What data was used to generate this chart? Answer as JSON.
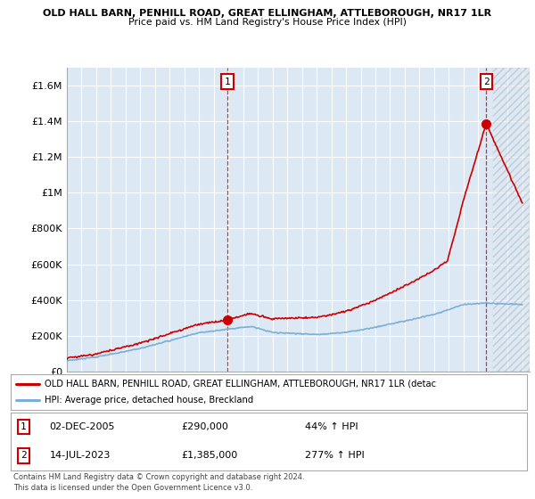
{
  "title1": "OLD HALL BARN, PENHILL ROAD, GREAT ELLINGHAM, ATTLEBOROUGH, NR17 1LR",
  "title2": "Price paid vs. HM Land Registry's House Price Index (HPI)",
  "xlim_start": 1995.0,
  "xlim_end": 2026.5,
  "ylim": [
    0,
    1700000
  ],
  "yticks": [
    0,
    200000,
    400000,
    600000,
    800000,
    1000000,
    1200000,
    1400000,
    1600000
  ],
  "ytick_labels": [
    "£0",
    "£200K",
    "£400K",
    "£600K",
    "£800K",
    "£1M",
    "£1.2M",
    "£1.4M",
    "£1.6M"
  ],
  "hpi_color": "#7bafd4",
  "price_color": "#cc0000",
  "sale1_x": 2005.92,
  "sale1_y": 290000,
  "sale2_x": 2023.54,
  "sale2_y": 1385000,
  "legend_price_label": "OLD HALL BARN, PENHILL ROAD, GREAT ELLINGHAM, ATTLEBOROUGH, NR17 1LR (detac",
  "legend_hpi_label": "HPI: Average price, detached house, Breckland",
  "table_row1": [
    "1",
    "02-DEC-2005",
    "£290,000",
    "44% ↑ HPI"
  ],
  "table_row2": [
    "2",
    "14-JUL-2023",
    "£1,385,000",
    "277% ↑ HPI"
  ],
  "footnote": "Contains HM Land Registry data © Crown copyright and database right 2024.\nThis data is licensed under the Open Government Licence v3.0.",
  "background_color": "#ffffff",
  "plot_bg_color": "#dce9f5",
  "grid_color": "#ffffff"
}
